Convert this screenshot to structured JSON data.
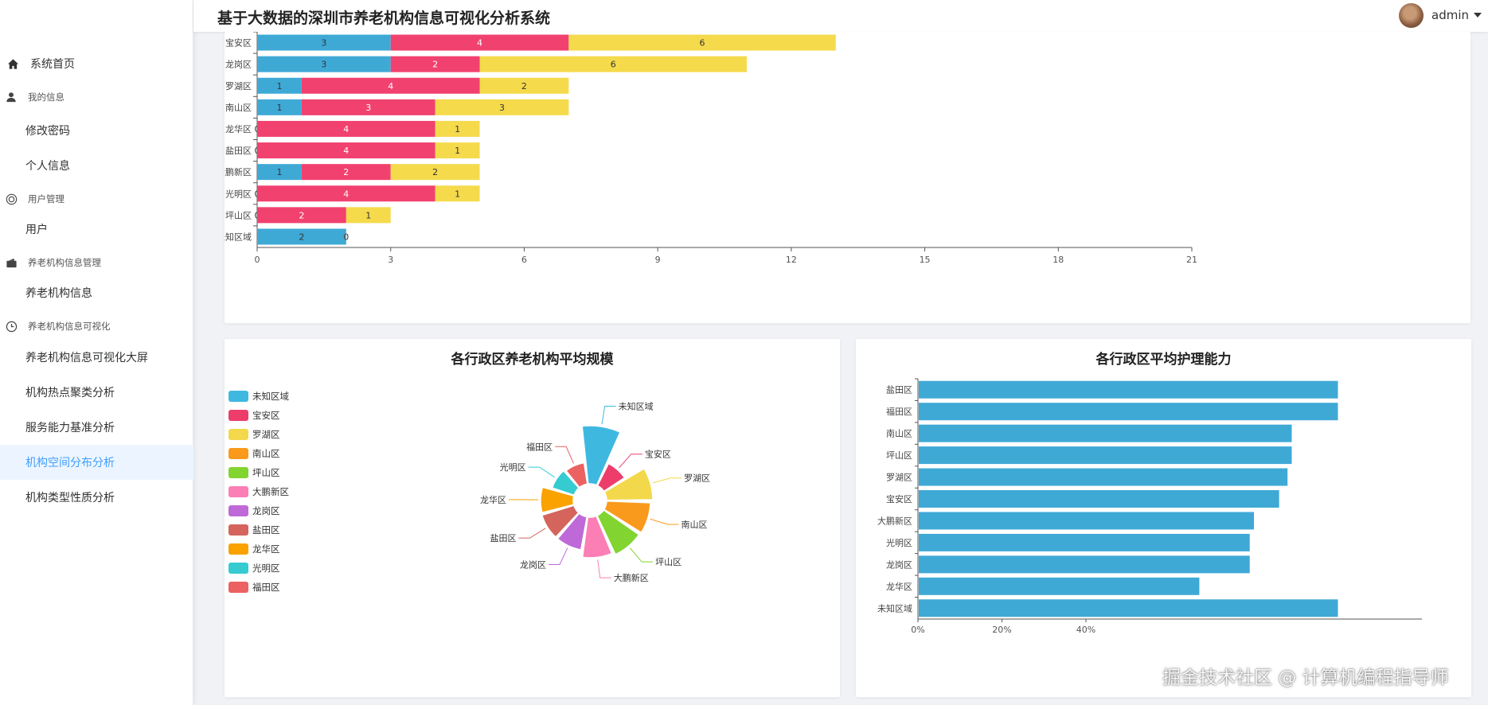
{
  "header": {
    "title": "基于大数据的深圳市养老机构信息可视化分析系统",
    "username": "admin"
  },
  "sidebar": {
    "items": [
      {
        "label": "系统首页",
        "kind": "top",
        "icon": "home-icon"
      },
      {
        "label": "我的信息",
        "kind": "group",
        "icon": "user-icon"
      },
      {
        "label": "修改密码",
        "kind": "sub"
      },
      {
        "label": "个人信息",
        "kind": "sub"
      },
      {
        "label": "用户管理",
        "kind": "group",
        "icon": "users-circle-icon"
      },
      {
        "label": "用户",
        "kind": "sub"
      },
      {
        "label": "养老机构信息管理",
        "kind": "group",
        "icon": "wallet-icon"
      },
      {
        "label": "养老机构信息",
        "kind": "sub"
      },
      {
        "label": "养老机构信息可视化",
        "kind": "group",
        "icon": "clock-icon"
      },
      {
        "label": "养老机构信息可视化大屏",
        "kind": "sub"
      },
      {
        "label": "机构热点聚类分析",
        "kind": "sub"
      },
      {
        "label": "服务能力基准分析",
        "kind": "sub"
      },
      {
        "label": "机构空间分布分析",
        "kind": "sub",
        "active": true
      },
      {
        "label": "机构类型性质分析",
        "kind": "sub"
      }
    ],
    "active_color": "#409eff"
  },
  "chart_data": [
    {
      "type": "bar",
      "orientation": "horizontal",
      "stacked": true,
      "categories": [
        "宝安区",
        "龙岗区",
        "罗湖区",
        "南山区",
        "龙华区",
        "盐田区",
        "大鹏新区",
        "光明区",
        "坪山区",
        "未知区域"
      ],
      "series": [
        {
          "values": [
            3,
            3,
            1,
            1,
            0,
            0,
            1,
            0,
            0,
            2
          ],
          "color": "#3fa9d6"
        },
        {
          "values": [
            4,
            2,
            4,
            3,
            4,
            4,
            2,
            4,
            2,
            0
          ],
          "color": "#f1416f"
        },
        {
          "values": [
            6,
            6,
            2,
            3,
            1,
            1,
            2,
            1,
            1,
            0
          ],
          "color": "#f5da4c"
        }
      ],
      "xlim": [
        0,
        21
      ],
      "xticks": [
        0,
        3,
        6,
        9,
        12,
        15,
        18,
        21
      ],
      "data_labels": true
    },
    {
      "type": "pie",
      "variant": "rose",
      "title": "各行政区养老机构平均规模",
      "legend_position": "left",
      "slices": [
        {
          "label": "未知区域",
          "value": 100,
          "color": "#3fb8e0"
        },
        {
          "label": "宝安区",
          "value": 58,
          "color": "#ec3d6b"
        },
        {
          "label": "罗湖区",
          "value": 85,
          "color": "#f3d84b"
        },
        {
          "label": "南山区",
          "value": 82,
          "color": "#f99a1c"
        },
        {
          "label": "坪山区",
          "value": 81,
          "color": "#82d430"
        },
        {
          "label": "大鹏新区",
          "value": 78,
          "color": "#fb7eb5"
        },
        {
          "label": "龙岗区",
          "value": 69,
          "color": "#bf69d8"
        },
        {
          "label": "盐田区",
          "value": 69,
          "color": "#d4645c"
        },
        {
          "label": "龙华区",
          "value": 68,
          "color": "#f9a200"
        },
        {
          "label": "光明区",
          "value": 56,
          "color": "#35cbd1"
        },
        {
          "label": "福田区",
          "value": 54,
          "color": "#ec6161"
        }
      ]
    },
    {
      "type": "bar",
      "orientation": "horizontal",
      "title": "各行政区平均护理能力",
      "categories": [
        "盐田区",
        "福田区",
        "南山区",
        "坪山区",
        "罗湖区",
        "宝安区",
        "大鹏新区",
        "光明区",
        "龙岗区",
        "龙华区",
        "未知区域"
      ],
      "values": [
        1.0,
        1.0,
        0.89,
        0.89,
        0.88,
        0.86,
        0.8,
        0.79,
        0.79,
        0.67,
        1.0
      ],
      "color": "#3fa9d6",
      "xticks_visible": [
        "0%",
        "20%",
        "40%"
      ],
      "xlim": [
        0,
        1.2
      ],
      "unit": "percent"
    }
  ],
  "watermark": "掘金技术社区 @ 计算机编程指导师"
}
